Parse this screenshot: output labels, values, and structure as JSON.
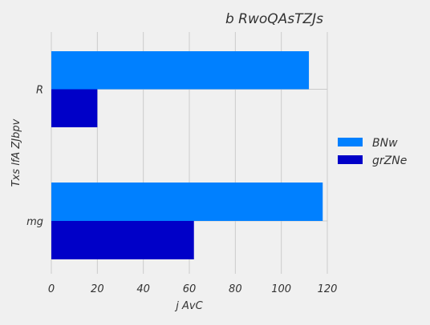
{
  "chart_data": {
    "type": "bar",
    "orientation": "horizontal",
    "title": "b  RwoQAsTZJs",
    "xlabel": "j AvC",
    "ylabel": "Txs lfA ZJbpv",
    "categories": [
      "R",
      "mg"
    ],
    "series": [
      {
        "name": "BNw",
        "values": [
          112,
          118
        ],
        "color": "#0080ff"
      },
      {
        "name": "grZNe",
        "values": [
          20,
          62
        ],
        "color": "#0000c8"
      }
    ],
    "xlim": [
      0,
      120
    ],
    "xticks": [
      0,
      20,
      40,
      60,
      80,
      100,
      120
    ],
    "grid": true,
    "legend_position": "right"
  }
}
